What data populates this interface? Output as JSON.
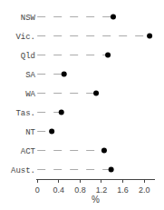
{
  "chart_data": {
    "type": "lollipop",
    "orientation": "horizontal",
    "categories": [
      "NSW",
      "Vic.",
      "Qld",
      "SA",
      "WA",
      "Tas.",
      "NT",
      "ACT",
      "Aust."
    ],
    "values": [
      1.42,
      2.1,
      1.32,
      0.5,
      1.1,
      0.45,
      0.27,
      1.25,
      1.38
    ],
    "color": "#000000",
    "marker": "circle",
    "line_style": "dashed",
    "xlabel": "%",
    "xlim": [
      -0.02,
      2.2
    ],
    "xticks": [
      0,
      0.4,
      0.8,
      1.2,
      1.6,
      {
        "value": 2.0,
        "label": "2.0"
      }
    ],
    "grid": false
  }
}
